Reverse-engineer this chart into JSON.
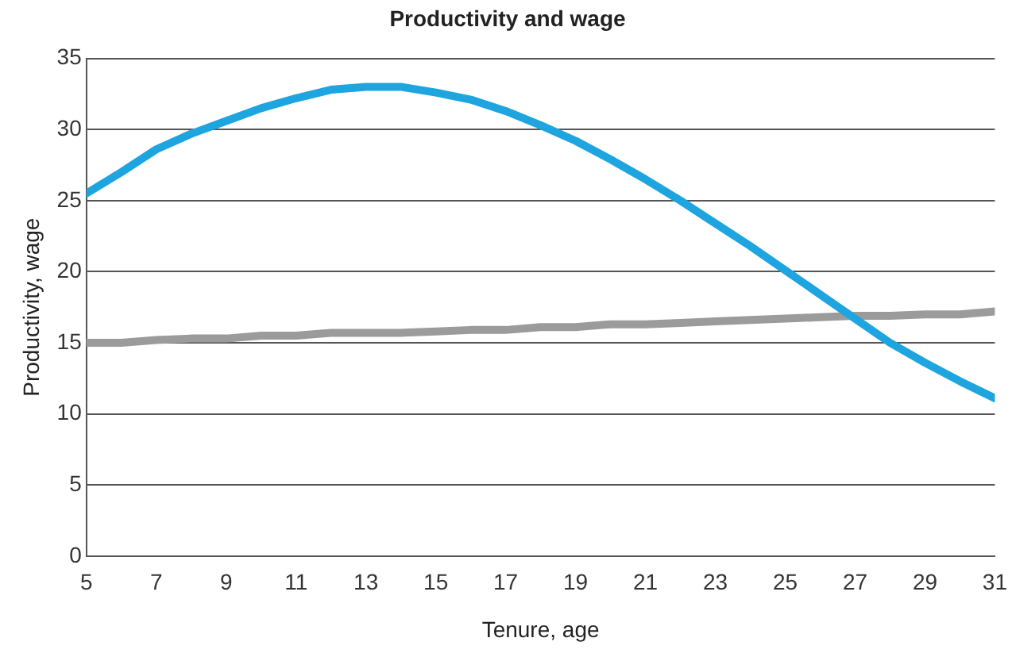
{
  "chart_data": {
    "type": "line",
    "title": "Productivity and wage",
    "xlabel": "Tenure, age",
    "ylabel": "Productivity, wage",
    "x": [
      5,
      6,
      7,
      8,
      9,
      10,
      11,
      12,
      13,
      14,
      15,
      16,
      17,
      18,
      19,
      20,
      21,
      22,
      23,
      24,
      25,
      26,
      27,
      28,
      29,
      30,
      31
    ],
    "series": [
      {
        "color": "#1ea5e0",
        "values": [
          25.5,
          27,
          28.6,
          29.7,
          30.6,
          31.5,
          32.2,
          32.8,
          33,
          33,
          32.6,
          32.1,
          31.3,
          30.3,
          29.2,
          27.9,
          26.5,
          25,
          23.4,
          21.8,
          20.1,
          18.4,
          16.7,
          15,
          13.6,
          12.3,
          11.1
        ]
      },
      {
        "color": "#9b9b9b",
        "values": [
          15,
          15,
          15.2,
          15.3,
          15.3,
          15.5,
          15.5,
          15.7,
          15.7,
          15.7,
          15.8,
          15.9,
          15.9,
          16.1,
          16.1,
          16.3,
          16.3,
          16.4,
          16.5,
          16.6,
          16.7,
          16.8,
          16.9,
          16.9,
          17,
          17,
          17.2
        ]
      }
    ],
    "xlim": [
      5,
      31
    ],
    "xticks": [
      5,
      7,
      9,
      11,
      13,
      15,
      17,
      19,
      21,
      23,
      25,
      27,
      29,
      31
    ],
    "ylim": [
      0,
      35
    ],
    "yticks": [
      0,
      5,
      10,
      15,
      20,
      25,
      30,
      35
    ],
    "grid": "y",
    "legend": false,
    "marker": "none",
    "line_style": "solid"
  }
}
